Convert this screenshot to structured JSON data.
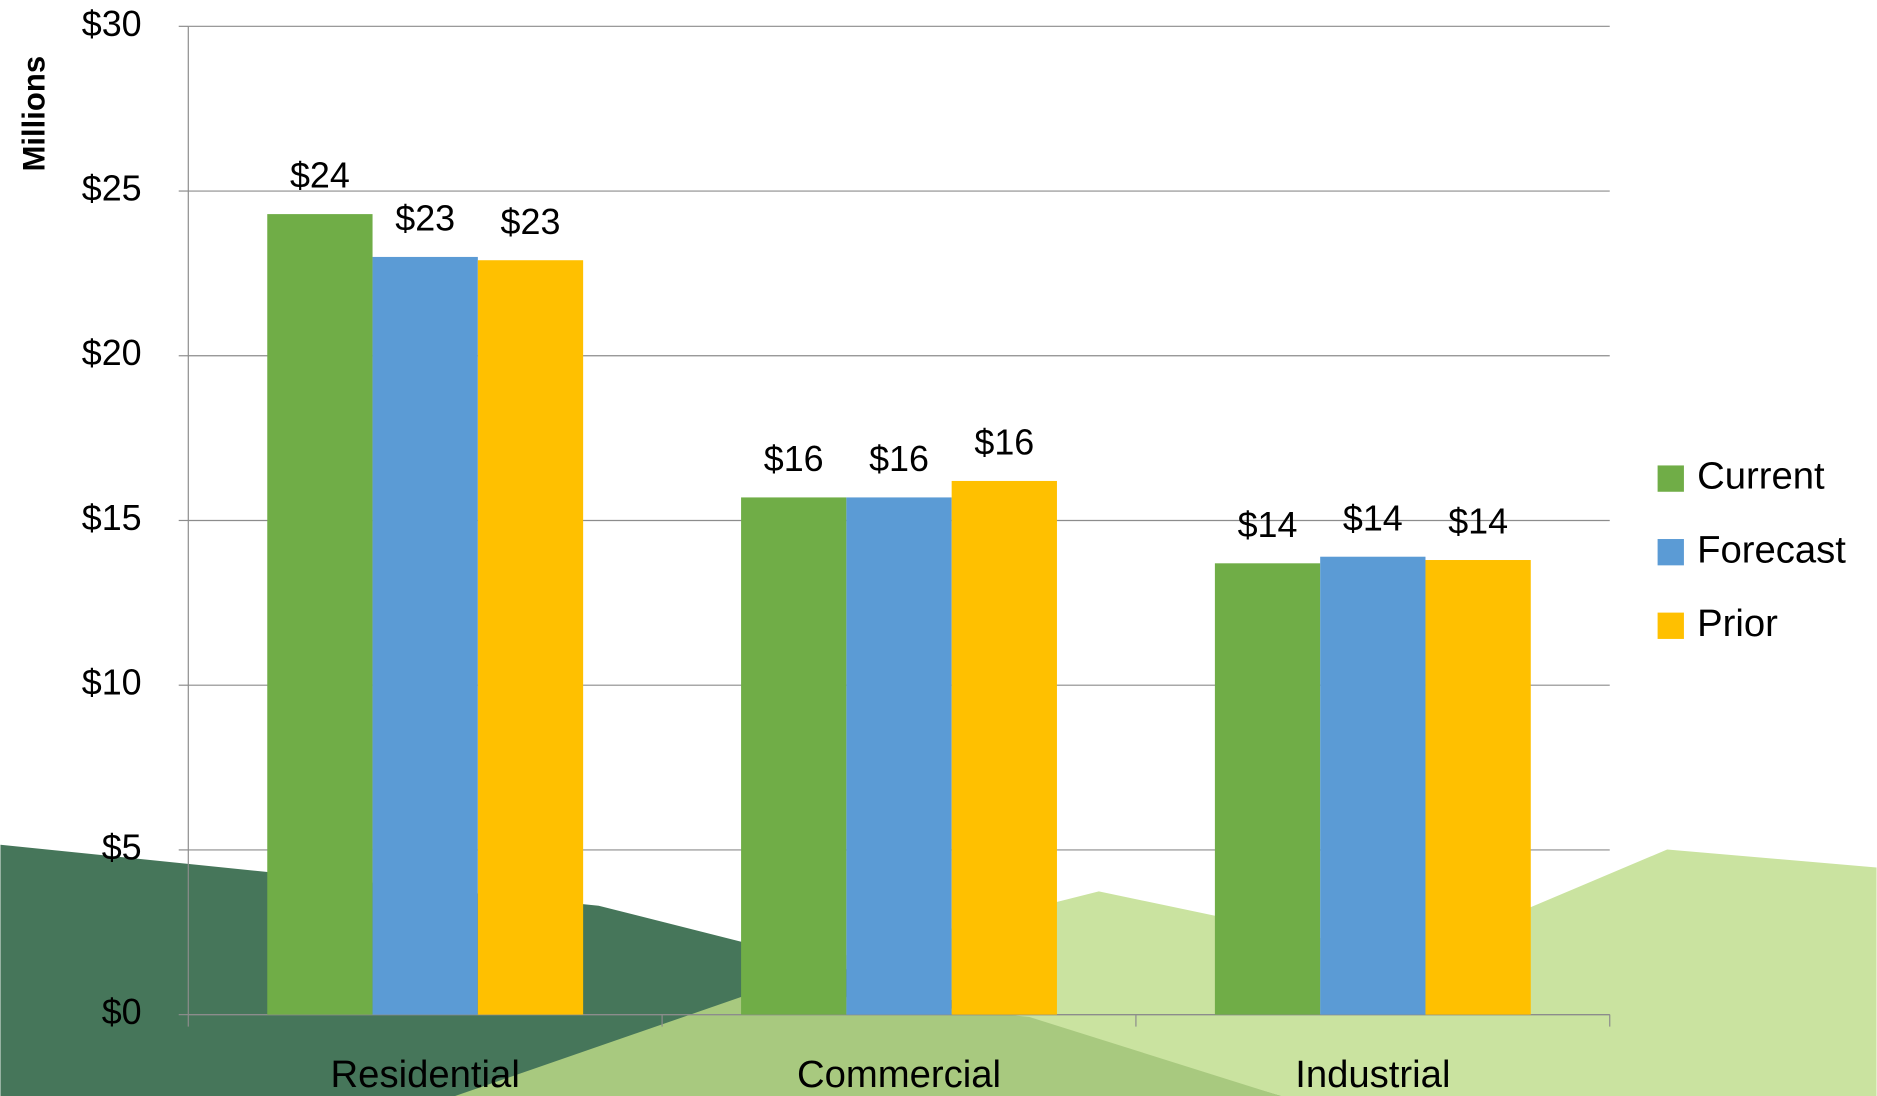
{
  "chart_data": {
    "type": "bar",
    "y_label": "Millions",
    "categories": [
      "Residential",
      "Commercial",
      "Industrial"
    ],
    "series": [
      {
        "name": "Current",
        "color": "#70ad47",
        "values": [
          24.3,
          15.7,
          13.7
        ],
        "value_labels": [
          "$24",
          "$16",
          "$14"
        ]
      },
      {
        "name": "Forecast",
        "color": "#5b9bd5",
        "values": [
          23.0,
          15.7,
          13.9
        ],
        "value_labels": [
          "$23",
          "$16",
          "$14"
        ]
      },
      {
        "name": "Prior",
        "color": "#ffc000",
        "values": [
          22.9,
          16.2,
          13.8
        ],
        "value_labels": [
          "$23",
          "$16",
          "$14"
        ]
      }
    ],
    "ylim": [
      0,
      30
    ],
    "yticks": [
      {
        "value": 0,
        "label": "$0"
      },
      {
        "value": 5,
        "label": "$5"
      },
      {
        "value": 10,
        "label": "$10"
      },
      {
        "value": 15,
        "label": "$15"
      },
      {
        "value": 20,
        "label": "$20"
      },
      {
        "value": 25,
        "label": "$25"
      },
      {
        "value": 30,
        "label": "$30"
      }
    ],
    "grid": true,
    "legend": "right"
  }
}
